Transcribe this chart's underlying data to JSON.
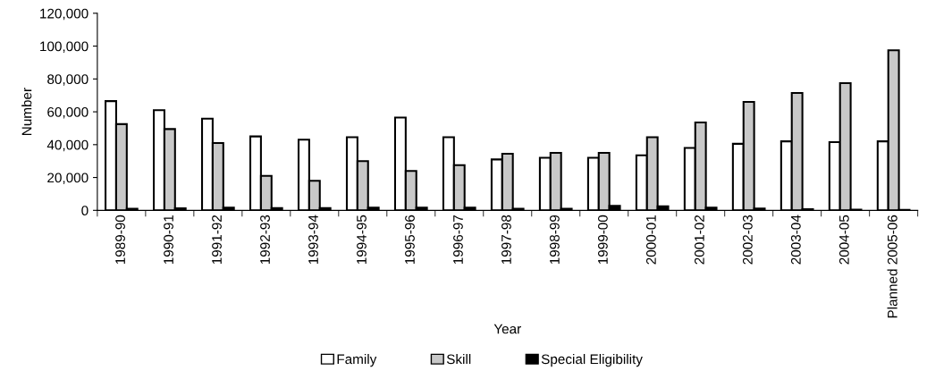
{
  "chart_data": {
    "type": "bar",
    "xlabel": "Year",
    "ylabel": "Number",
    "categories": [
      "1989-90",
      "1990-91",
      "1991-92",
      "1992-93",
      "1993-94",
      "1994-95",
      "1995-96",
      "1996-97",
      "1997-98",
      "1998-99",
      "1999-00",
      "2000-01",
      "2001-02",
      "2002-03",
      "2003-04",
      "2004-05",
      "Planned 2005-06"
    ],
    "series": [
      {
        "name": "Family",
        "color": "#ffffff",
        "values": [
          66500,
          61000,
          55800,
          45000,
          43000,
          44500,
          56500,
          44500,
          31000,
          32000,
          32000,
          33500,
          38000,
          40500,
          42000,
          41500,
          42000
        ]
      },
      {
        "name": "Skill",
        "color": "#c8c8c8",
        "values": [
          52500,
          49500,
          41000,
          21000,
          18000,
          30000,
          24000,
          27500,
          34500,
          35000,
          35000,
          44500,
          53500,
          66000,
          71500,
          77500,
          97500
        ]
      },
      {
        "name": "Special Eligibility",
        "color": "#000000",
        "values": [
          1000,
          1200,
          1700,
          1400,
          1400,
          1700,
          1700,
          1700,
          1000,
          900,
          2800,
          2500,
          1700,
          1100,
          700,
          400,
          300
        ]
      }
    ],
    "ylim": [
      0,
      120000
    ],
    "yticks": [
      {
        "value": 0,
        "label": "0"
      },
      {
        "value": 20000,
        "label": "20,000"
      },
      {
        "value": 40000,
        "label": "40,000"
      },
      {
        "value": 60000,
        "label": "60,000"
      },
      {
        "value": 80000,
        "label": "80,000"
      },
      {
        "value": 100000,
        "label": "100,000"
      },
      {
        "value": 120000,
        "label": "120,000"
      }
    ],
    "grid": false,
    "legend": "bottom"
  }
}
